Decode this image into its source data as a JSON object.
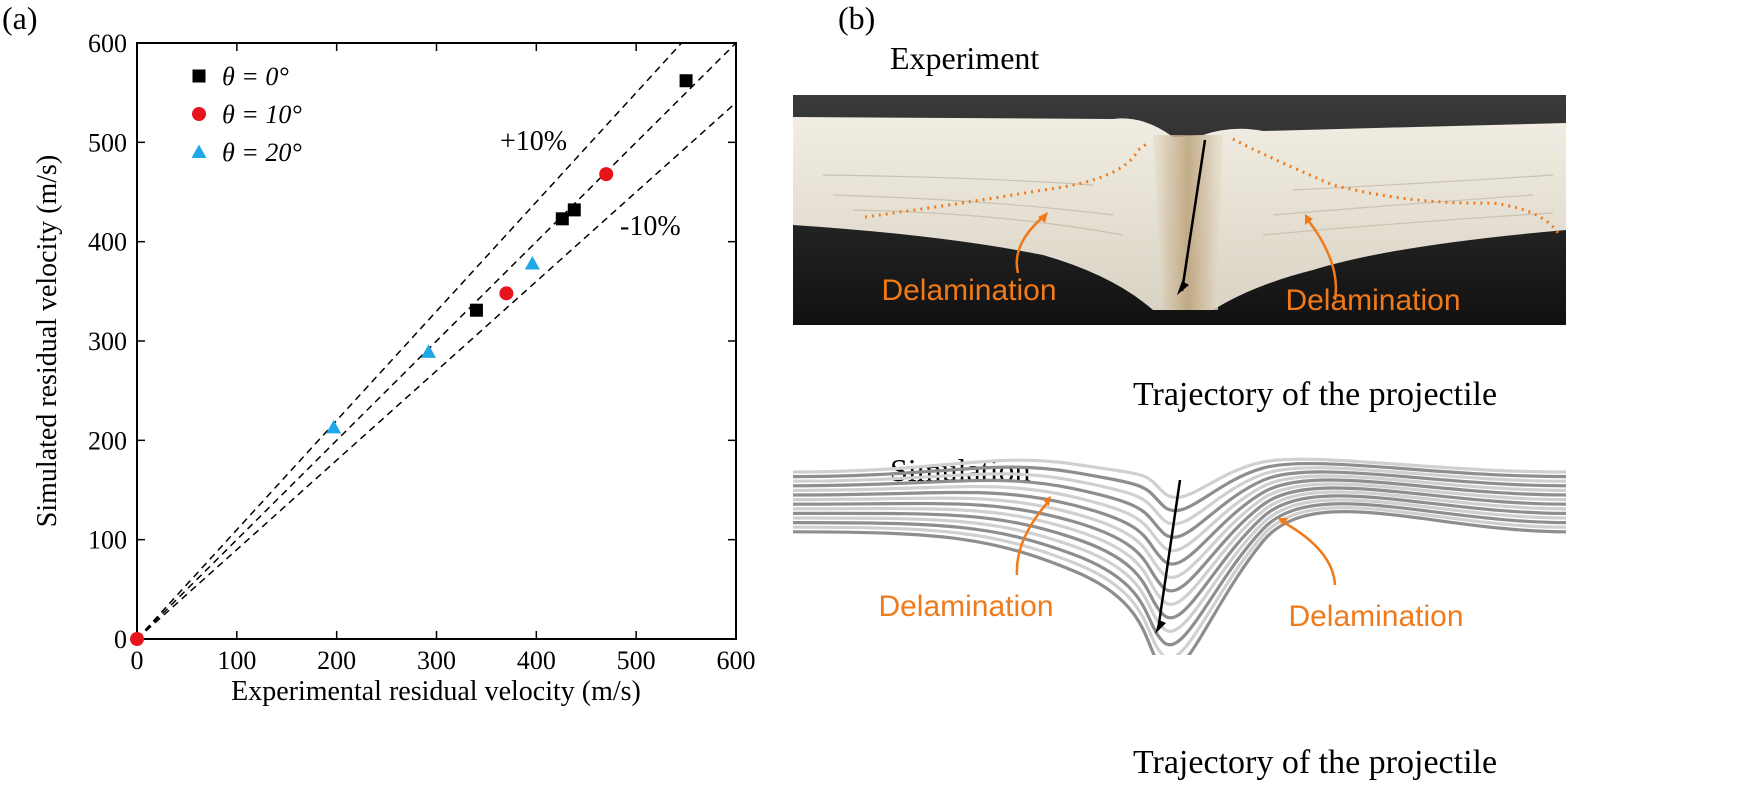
{
  "panel_a": {
    "label": "(a)"
  },
  "panel_b": {
    "label": "(b)",
    "experiment": {
      "title": "Experiment",
      "annotation_left": "Delamination",
      "annotation_right": "Delamination",
      "caption": "Trajectory of the projectile"
    },
    "simulation": {
      "title": "Simulation",
      "annotation_left": "Delamination",
      "annotation_right": "Delamination",
      "caption": "Trajectory of the projectile"
    }
  },
  "colors": {
    "theta0": "#000000",
    "theta10": "#e8141c",
    "theta20": "#1ea8e8",
    "annotation": "#f07a1a"
  },
  "chart_data": {
    "type": "scatter",
    "xlabel": "Experimental residual velocity (m/s)",
    "ylabel": "Simulated residual velocity (m/s)",
    "xlim": [
      0,
      600
    ],
    "ylim": [
      0,
      600
    ],
    "xticks": [
      0,
      100,
      200,
      300,
      400,
      500,
      600
    ],
    "yticks": [
      0,
      100,
      200,
      300,
      400,
      500,
      600
    ],
    "legend_position": "top-left",
    "grid": false,
    "series": [
      {
        "name": "θ = 0°",
        "marker": "square",
        "points": [
          [
            340,
            331
          ],
          [
            426,
            423
          ],
          [
            438,
            432
          ],
          [
            550,
            562
          ]
        ]
      },
      {
        "name": "θ = 10°",
        "marker": "circle",
        "points": [
          [
            0,
            0
          ],
          [
            370,
            348
          ],
          [
            470,
            468
          ]
        ]
      },
      {
        "name": "θ = 20°",
        "marker": "triangle",
        "points": [
          [
            197,
            213
          ],
          [
            292,
            289
          ],
          [
            396,
            378
          ]
        ]
      }
    ],
    "reference_lines": [
      {
        "label": "+10%",
        "slope": 1.1
      },
      {
        "label": "",
        "slope": 1.0
      },
      {
        "label": "-10%",
        "slope": 0.9
      }
    ]
  }
}
